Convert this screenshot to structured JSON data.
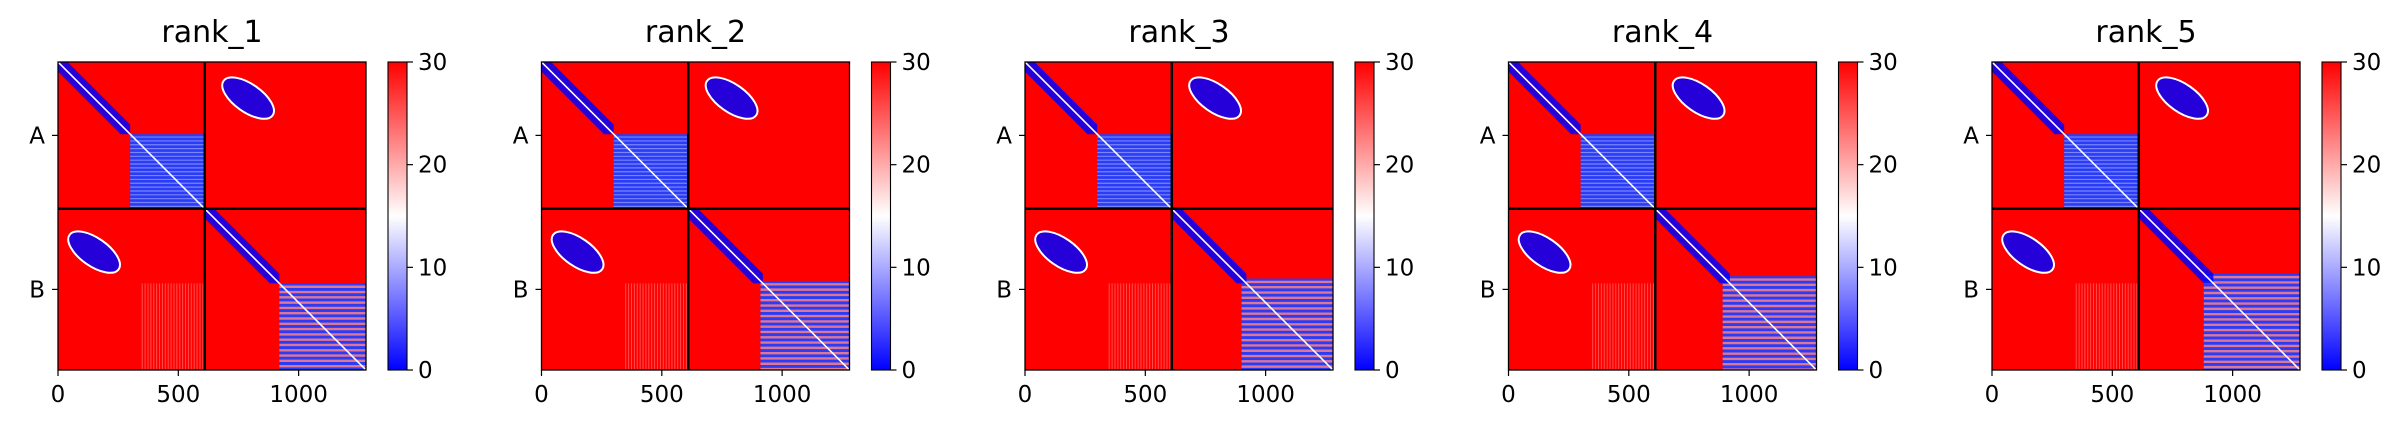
{
  "chart_data": [
    {
      "type": "heatmap",
      "title": "rank_1",
      "x_ticks": [
        0,
        500,
        1000
      ],
      "y_tick_labels": [
        "A",
        "B"
      ],
      "xlim": [
        0,
        1280
      ],
      "chain_boundary": 610,
      "colorbar": {
        "range": [
          0,
          30
        ],
        "ticks": [
          0,
          10,
          20,
          30
        ],
        "colormap": "bwr"
      },
      "colors": {
        "low": "#0000ff",
        "mid": "#ffffff",
        "high": "#ff0000"
      }
    },
    {
      "type": "heatmap",
      "title": "rank_2",
      "x_ticks": [
        0,
        500,
        1000
      ],
      "y_tick_labels": [
        "A",
        "B"
      ],
      "xlim": [
        0,
        1280
      ],
      "chain_boundary": 610,
      "colorbar": {
        "range": [
          0,
          30
        ],
        "ticks": [
          0,
          10,
          20,
          30
        ],
        "colormap": "bwr"
      },
      "colors": {
        "low": "#0000ff",
        "mid": "#ffffff",
        "high": "#ff0000"
      }
    },
    {
      "type": "heatmap",
      "title": "rank_3",
      "x_ticks": [
        0,
        500,
        1000
      ],
      "y_tick_labels": [
        "A",
        "B"
      ],
      "xlim": [
        0,
        1280
      ],
      "chain_boundary": 610,
      "colorbar": {
        "range": [
          0,
          30
        ],
        "ticks": [
          0,
          10,
          20,
          30
        ],
        "colormap": "bwr"
      },
      "colors": {
        "low": "#0000ff",
        "mid": "#ffffff",
        "high": "#ff0000"
      }
    },
    {
      "type": "heatmap",
      "title": "rank_4",
      "x_ticks": [
        0,
        500,
        1000
      ],
      "y_tick_labels": [
        "A",
        "B"
      ],
      "xlim": [
        0,
        1280
      ],
      "chain_boundary": 610,
      "colorbar": {
        "range": [
          0,
          30
        ],
        "ticks": [
          0,
          10,
          20,
          30
        ],
        "colormap": "bwr"
      },
      "colors": {
        "low": "#0000ff",
        "mid": "#ffffff",
        "high": "#ff0000"
      }
    },
    {
      "type": "heatmap",
      "title": "rank_5",
      "x_ticks": [
        0,
        500,
        1000
      ],
      "y_tick_labels": [
        "A",
        "B"
      ],
      "xlim": [
        0,
        1280
      ],
      "chain_boundary": 610,
      "colorbar": {
        "range": [
          0,
          30
        ],
        "ticks": [
          0,
          10,
          20,
          30
        ],
        "colormap": "bwr"
      },
      "colors": {
        "low": "#0000ff",
        "mid": "#ffffff",
        "high": "#ff0000"
      }
    }
  ]
}
